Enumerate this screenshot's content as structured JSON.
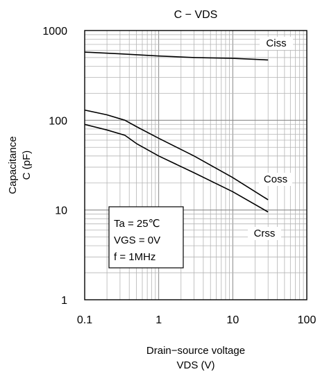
{
  "chart_data": {
    "type": "line",
    "title": "C − VDS",
    "xlabel_line1": "Drain−source voltage",
    "xlabel_line2": "VDS (V)",
    "ylabel_line1": "Capacitance",
    "ylabel_line2": "C (pF)",
    "x_scale": "log",
    "y_scale": "log",
    "xlim": [
      0.1,
      100
    ],
    "ylim": [
      1,
      1000
    ],
    "x_ticks": [
      0.1,
      1,
      10,
      100
    ],
    "x_tick_labels": [
      "0.1",
      "1",
      "10",
      "100"
    ],
    "y_ticks": [
      1,
      10,
      100,
      1000
    ],
    "y_tick_labels": [
      "1",
      "10",
      "100",
      "1000"
    ],
    "grid": true,
    "conditions": [
      "Ta = 25℃",
      "VGS = 0V",
      "f = 1MHz"
    ],
    "series": [
      {
        "name": "Ciss",
        "color": "#000000",
        "points": [
          [
            0.1,
            575
          ],
          [
            0.3,
            550
          ],
          [
            1,
            520
          ],
          [
            3,
            500
          ],
          [
            10,
            490
          ],
          [
            30,
            470
          ]
        ]
      },
      {
        "name": "Coss",
        "color": "#000000",
        "points": [
          [
            0.1,
            130
          ],
          [
            0.2,
            115
          ],
          [
            0.35,
            100
          ],
          [
            0.5,
            85
          ],
          [
            1,
            63
          ],
          [
            3,
            40
          ],
          [
            10,
            23
          ],
          [
            30,
            13
          ]
        ]
      },
      {
        "name": "Crss",
        "color": "#000000",
        "points": [
          [
            0.1,
            90
          ],
          [
            0.2,
            78
          ],
          [
            0.35,
            68
          ],
          [
            0.5,
            55
          ],
          [
            1,
            40
          ],
          [
            3,
            26
          ],
          [
            10,
            16
          ],
          [
            30,
            9.5
          ]
        ]
      }
    ]
  }
}
